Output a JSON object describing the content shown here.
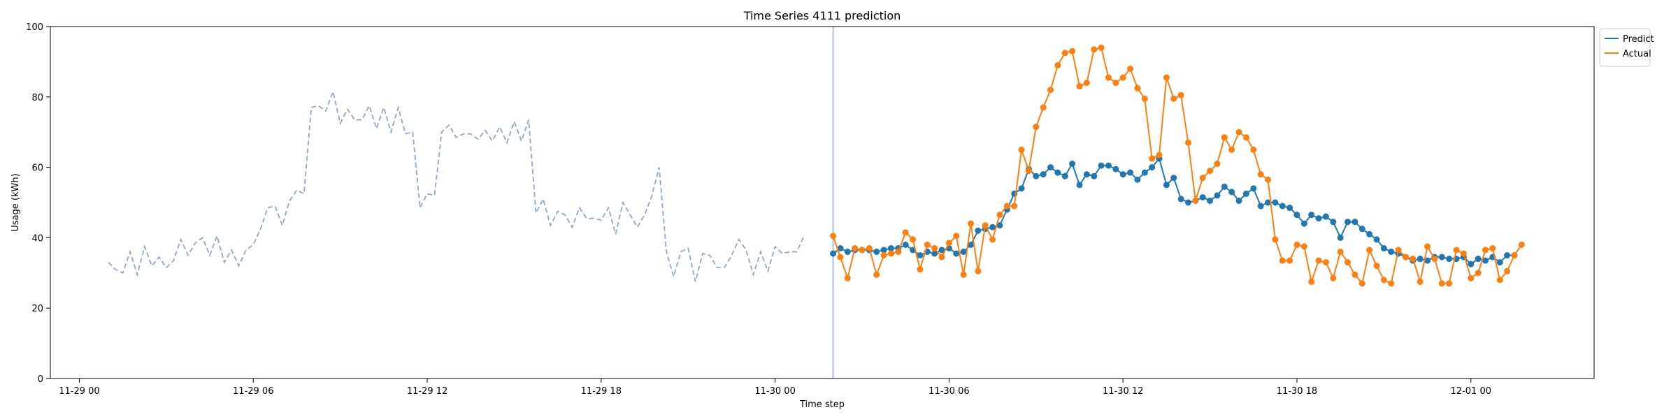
{
  "chart_data": {
    "type": "line",
    "title": "Time Series 4111 prediction",
    "xlabel": "Time step",
    "ylabel": "Usage (kWh)",
    "ylim": [
      0,
      100
    ],
    "xlim": [
      "2023-11-28 23:00",
      "2023-12-01 04:15"
    ],
    "grid": false,
    "legend_position": "top-right-outside",
    "x_ticks": [
      {
        "time": "2023-11-29 00:00",
        "label": "11-29 00"
      },
      {
        "time": "2023-11-29 06:00",
        "label": "11-29 06"
      },
      {
        "time": "2023-11-29 12:00",
        "label": "11-29 12"
      },
      {
        "time": "2023-11-29 18:00",
        "label": "11-29 18"
      },
      {
        "time": "2023-11-30 00:00",
        "label": "11-30 00"
      },
      {
        "time": "2023-11-30 06:00",
        "label": "11-30 06"
      },
      {
        "time": "2023-11-30 12:00",
        "label": "11-30 12"
      },
      {
        "time": "2023-11-30 18:00",
        "label": "11-30 18"
      },
      {
        "time": "2023-12-01 00:00",
        "label": "12-01 00"
      }
    ],
    "y_ticks": [
      0,
      20,
      40,
      60,
      80,
      100
    ],
    "forecast_start": "2023-11-30 02:00",
    "colors": {
      "history": "#8fa8c8",
      "predict": "#1f77b4",
      "actual": "#ff7f0e",
      "divider": "#8fa8c8"
    },
    "series": [
      {
        "role": "history",
        "style": "dashed",
        "x_start": "2023-11-29 01:00",
        "step_minutes": 15,
        "values": [
          33.0,
          31.0,
          30.0,
          36.0,
          29.5,
          37.5,
          32.0,
          34.5,
          31.5,
          33.5,
          39.5,
          35.0,
          38.5,
          40.0,
          35.0,
          40.5,
          33.0,
          36.5,
          32.0,
          36.5,
          38.0,
          42.5,
          48.5,
          49.0,
          43.5,
          50.5,
          53.5,
          52.5,
          77.0,
          77.5,
          76.0,
          81.5,
          72.5,
          76.5,
          73.5,
          73.5,
          77.5,
          71.0,
          77.0,
          70.0,
          77.0,
          69.5,
          70.0,
          48.5,
          52.5,
          52.0,
          70.0,
          72.0,
          68.5,
          69.5,
          69.5,
          68.0,
          70.5,
          67.5,
          71.5,
          67.0,
          73.0,
          67.5,
          73.5,
          47.0,
          51.0,
          43.5,
          47.5,
          46.5,
          43.0,
          48.5,
          45.5,
          45.5,
          45.0,
          48.5,
          41.0,
          50.0,
          46.5,
          43.0,
          46.5,
          52.0,
          60.0,
          36.0,
          29.0,
          36.0,
          37.0,
          27.5,
          35.5,
          35.0,
          31.5,
          31.5,
          35.0,
          39.5,
          36.5,
          29.5,
          36.0,
          30.5,
          37.5,
          35.5,
          36.0,
          36.0,
          40.5
        ]
      },
      {
        "name": "Predict",
        "role": "predict",
        "x_start": "2023-11-30 02:00",
        "step_minutes": 15,
        "values": [
          35.5,
          37.0,
          36.0,
          36.5,
          36.5,
          36.5,
          36.0,
          36.5,
          37.0,
          37.0,
          38.0,
          36.5,
          35.0,
          36.0,
          35.5,
          36.5,
          37.0,
          35.5,
          36.0,
          38.0,
          42.0,
          42.5,
          43.0,
          43.5,
          48.0,
          52.5,
          54.0,
          59.5,
          57.5,
          58.0,
          60.0,
          58.5,
          57.5,
          61.0,
          55.0,
          58.0,
          57.5,
          60.5,
          60.5,
          59.5,
          58.0,
          58.5,
          56.5,
          58.5,
          60.0,
          62.5,
          55.0,
          57.0,
          51.0,
          50.0,
          50.5,
          51.5,
          50.5,
          52.0,
          54.5,
          53.0,
          50.5,
          52.5,
          54.0,
          49.0,
          50.0,
          50.0,
          49.0,
          48.5,
          46.5,
          44.0,
          46.5,
          45.5,
          46.0,
          44.5,
          40.0,
          44.5,
          44.5,
          42.5,
          41.0,
          39.5,
          37.0,
          36.0,
          35.5,
          34.5,
          33.5,
          34.0,
          33.5,
          34.5,
          34.5,
          34.0,
          34.0,
          34.5,
          32.5,
          34.0,
          33.5,
          34.5,
          33.0,
          35.0,
          35.0
        ]
      },
      {
        "name": "Actual",
        "role": "actual",
        "x_start": "2023-11-30 02:00",
        "step_minutes": 15,
        "values": [
          40.5,
          34.5,
          28.5,
          37.0,
          36.5,
          37.0,
          29.5,
          35.0,
          35.5,
          36.0,
          41.5,
          39.5,
          31.0,
          38.0,
          37.0,
          34.5,
          38.5,
          40.5,
          29.5,
          44.0,
          30.5,
          43.5,
          39.5,
          46.5,
          49.0,
          49.0,
          65.0,
          59.0,
          71.5,
          77.0,
          82.0,
          89.0,
          92.5,
          93.0,
          83.0,
          84.0,
          93.5,
          94.0,
          85.5,
          84.0,
          85.5,
          88.0,
          82.5,
          79.5,
          62.5,
          63.5,
          85.5,
          79.5,
          80.5,
          67.0,
          50.5,
          57.0,
          59.0,
          61.0,
          68.5,
          65.0,
          70.0,
          68.5,
          65.0,
          58.0,
          56.5,
          39.5,
          33.5,
          33.5,
          38.0,
          37.5,
          27.5,
          33.5,
          33.0,
          28.5,
          36.0,
          33.0,
          29.5,
          27.0,
          36.5,
          32.0,
          28.0,
          27.0,
          36.5,
          34.5,
          34.0,
          27.5,
          37.5,
          34.0,
          27.0,
          27.0,
          36.5,
          35.5,
          28.5,
          30.0,
          36.5,
          37.0,
          28.0,
          30.5,
          35.0,
          38.0
        ]
      }
    ]
  }
}
